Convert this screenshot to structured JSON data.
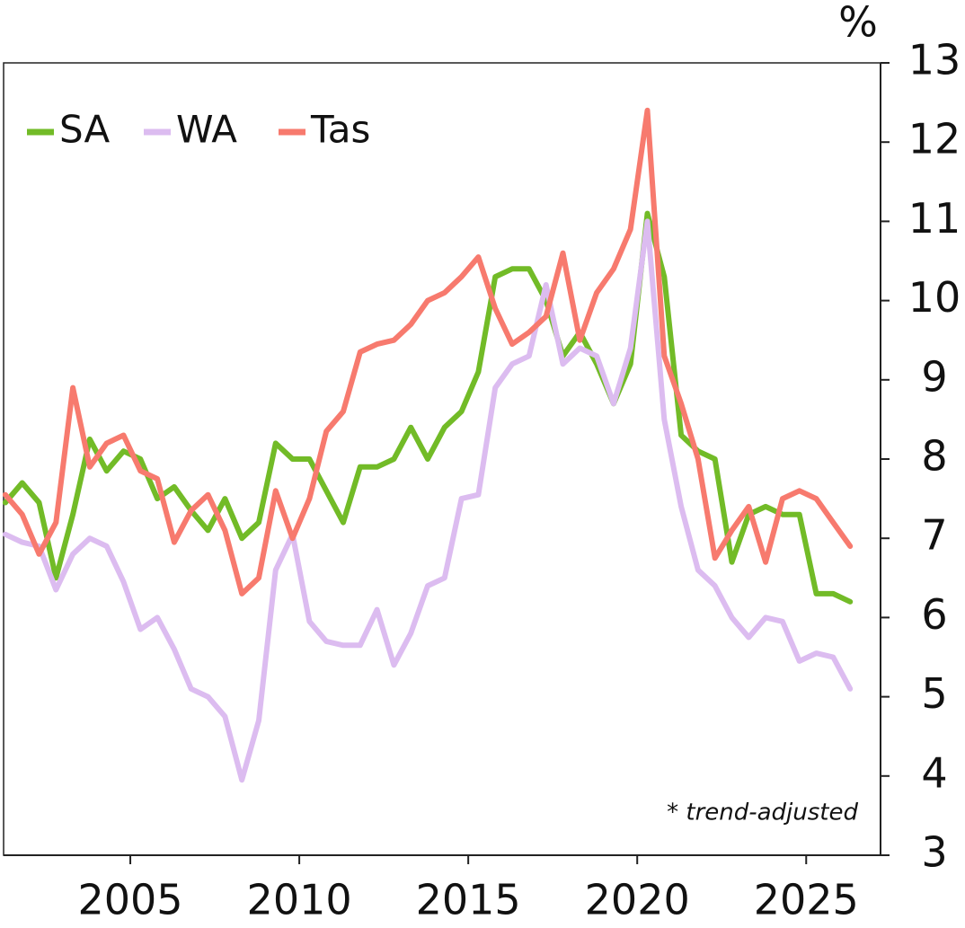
{
  "chart_data": {
    "type": "line",
    "y_label": "%",
    "annotation": "* trend-adjusted",
    "x": [
      2001.3,
      2001.8,
      2002.3,
      2002.8,
      2003.3,
      2003.8,
      2004.3,
      2004.8,
      2005.3,
      2005.8,
      2006.3,
      2006.8,
      2007.3,
      2007.8,
      2008.3,
      2008.8,
      2009.3,
      2009.8,
      2010.3,
      2010.8,
      2011.3,
      2011.8,
      2012.3,
      2012.8,
      2013.3,
      2013.8,
      2014.3,
      2014.8,
      2015.3,
      2015.8,
      2016.3,
      2016.8,
      2017.3,
      2017.8,
      2018.3,
      2018.8,
      2019.3,
      2019.8,
      2020.3,
      2020.8,
      2021.3,
      2021.8,
      2022.3,
      2022.8,
      2023.3,
      2023.8,
      2024.3,
      2024.8,
      2025.3,
      2025.8,
      2026.3
    ],
    "series": [
      {
        "name": "SA",
        "color": "#72bb27",
        "values": [
          7.45,
          7.7,
          7.45,
          6.5,
          7.3,
          8.25,
          7.85,
          8.1,
          8.0,
          7.5,
          7.65,
          7.35,
          7.1,
          7.5,
          7.0,
          7.2,
          8.2,
          8.0,
          8.0,
          7.6,
          7.2,
          7.9,
          7.9,
          8.0,
          8.4,
          8.0,
          8.4,
          8.6,
          9.1,
          10.3,
          10.4,
          10.4,
          10.0,
          9.3,
          9.6,
          9.2,
          8.7,
          9.2,
          11.1,
          10.3,
          8.3,
          8.1,
          8.0,
          6.7,
          7.3,
          7.4,
          7.3,
          7.3,
          6.3,
          6.3,
          6.2
        ]
      },
      {
        "name": "WA",
        "color": "#dcbcf0",
        "values": [
          7.05,
          6.95,
          6.9,
          6.35,
          6.8,
          7.0,
          6.9,
          6.45,
          5.85,
          6.0,
          5.6,
          5.1,
          5.0,
          4.75,
          3.95,
          4.7,
          6.6,
          7.05,
          5.95,
          5.7,
          5.65,
          5.65,
          6.1,
          5.4,
          5.8,
          6.4,
          6.5,
          7.5,
          7.55,
          8.9,
          9.2,
          9.3,
          10.2,
          9.2,
          9.4,
          9.3,
          8.7,
          9.4,
          11.0,
          8.5,
          7.4,
          6.6,
          6.4,
          6.0,
          5.75,
          6.0,
          5.95,
          5.45,
          5.55,
          5.5,
          5.1
        ]
      },
      {
        "name": "Tas",
        "color": "#f77a6e",
        "values": [
          7.55,
          7.3,
          6.8,
          7.2,
          8.9,
          7.9,
          8.2,
          8.3,
          7.85,
          7.75,
          6.95,
          7.35,
          7.55,
          7.1,
          6.3,
          6.5,
          7.6,
          7.0,
          7.5,
          8.35,
          8.6,
          9.35,
          9.45,
          9.5,
          9.7,
          10.0,
          10.1,
          10.3,
          10.55,
          9.9,
          9.45,
          9.6,
          9.8,
          10.6,
          9.5,
          10.1,
          10.4,
          10.9,
          12.4,
          9.3,
          8.7,
          8.0,
          6.75,
          7.1,
          7.4,
          6.7,
          7.5,
          7.6,
          7.5,
          7.2,
          6.9
        ]
      }
    ],
    "xlim": [
      2001.25,
      2027.2
    ],
    "xticks": [
      2005,
      2010,
      2015,
      2020,
      2025
    ],
    "ylim": [
      3,
      13
    ],
    "yticks": [
      3,
      4,
      5,
      6,
      7,
      8,
      9,
      10,
      11,
      12,
      13
    ],
    "legend": "top-left"
  }
}
